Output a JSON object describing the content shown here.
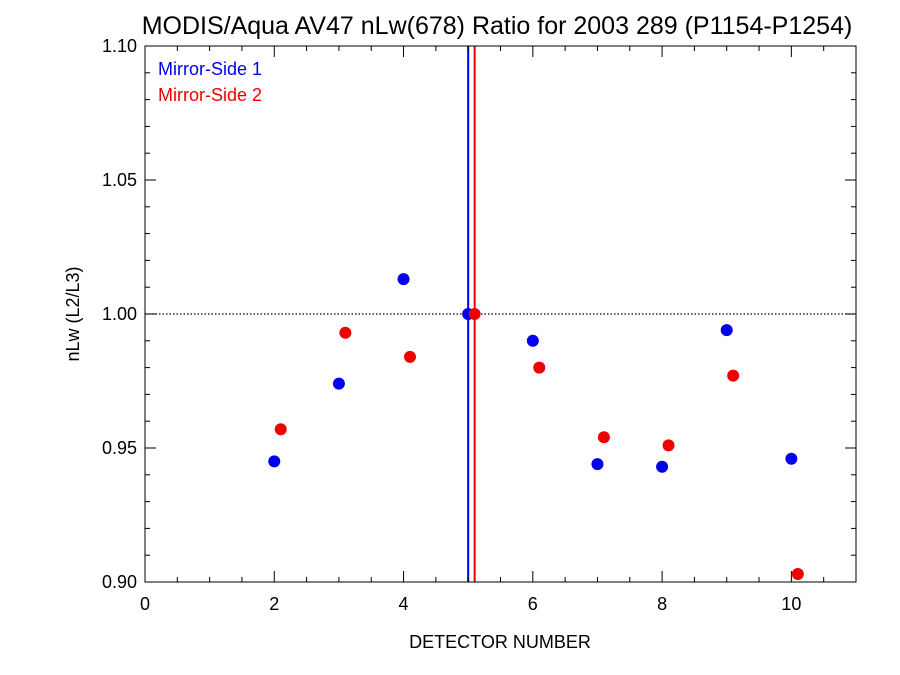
{
  "chart_data": {
    "type": "scatter",
    "title": "MODIS/Aqua AV47 nLw(678) Ratio for 2003 289 (P1154-P1254)",
    "xlabel": "DETECTOR NUMBER",
    "ylabel": "nLw (L2/L3)",
    "xlim": [
      0,
      11
    ],
    "ylim": [
      0.9,
      1.1
    ],
    "x_ticks": [
      "0",
      "2",
      "4",
      "6",
      "8",
      "10"
    ],
    "y_ticks": [
      "0.90",
      "0.95",
      "1.00",
      "1.05",
      "1.10"
    ],
    "reference_line_y": 1.0,
    "legend_position": "top-left",
    "series": [
      {
        "name": "Mirror-Side 1",
        "color": "#0000ee",
        "x": [
          2,
          3,
          4,
          5,
          6,
          7,
          8,
          9,
          10
        ],
        "y": [
          0.945,
          0.974,
          1.013,
          1.0,
          0.99,
          0.944,
          0.943,
          0.994,
          0.946
        ],
        "vertical_line_x": 5.0
      },
      {
        "name": "Mirror-Side 2",
        "color": "#ee0000",
        "x": [
          2.1,
          3.1,
          4.1,
          5.1,
          6.1,
          7.1,
          8.1,
          9.1,
          10.1
        ],
        "y": [
          0.957,
          0.993,
          0.984,
          1.0,
          0.98,
          0.954,
          0.951,
          0.977,
          0.903
        ],
        "vertical_line_x": 5.1
      }
    ]
  }
}
